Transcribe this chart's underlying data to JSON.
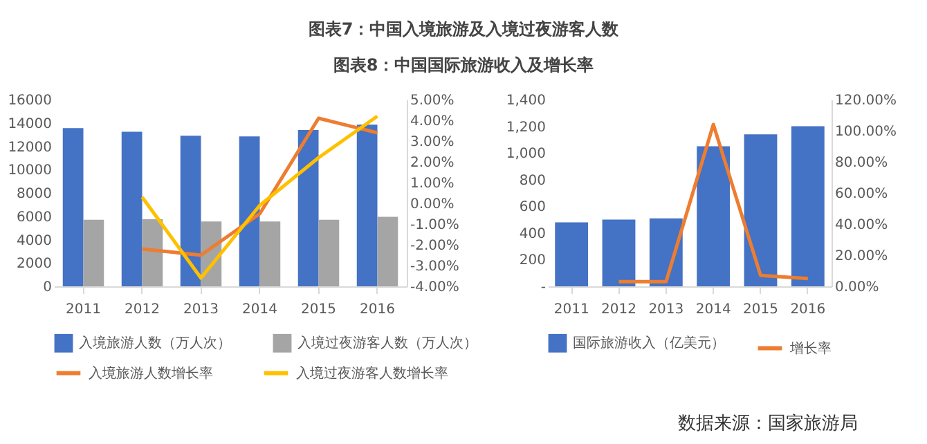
{
  "chart_data": [
    {
      "type": "bar",
      "title": "图表7：中国入境旅游及入境过夜游客人数",
      "categories": [
        "2011",
        "2012",
        "2013",
        "2014",
        "2015",
        "2016"
      ],
      "series": [
        {
          "name": "入境旅游人数（万人次）",
          "color": "#4472c4",
          "values": [
            13550,
            13250,
            12900,
            12850,
            13400,
            13850
          ]
        },
        {
          "name": "入境过夜游客人数（万人次）",
          "color": "#a5a5a5",
          "values": [
            5700,
            5750,
            5550,
            5550,
            5700,
            5950
          ]
        },
        {
          "name": "入境旅游人数增长率",
          "type": "line",
          "axis": "y2",
          "color": "#ed7d31",
          "values": [
            null,
            -2.2,
            -2.5,
            -0.5,
            4.1,
            3.4
          ]
        },
        {
          "name": "入境过夜游客人数增长率",
          "type": "line",
          "axis": "y2",
          "color": "#ffc000",
          "values": [
            null,
            0.3,
            -3.6,
            -0.1,
            2.2,
            4.2
          ]
        }
      ],
      "ylim": [
        0,
        16000
      ],
      "yticks": [
        0,
        2000,
        4000,
        6000,
        8000,
        10000,
        12000,
        14000,
        16000
      ],
      "y2lim": [
        -4,
        5
      ],
      "y2ticks": [
        {
          "value": -4,
          "label": "-4.00%"
        },
        {
          "value": -3,
          "label": "-3.00%"
        },
        {
          "value": -2,
          "label": "-2.00%"
        },
        {
          "value": -1,
          "label": "-1.00%"
        },
        {
          "value": 0,
          "label": "0.00%"
        },
        {
          "value": 1,
          "label": "1.00%"
        },
        {
          "value": 2,
          "label": "2.00%"
        },
        {
          "value": 3,
          "label": "3.00%"
        },
        {
          "value": 4,
          "label": "4.00%"
        },
        {
          "value": 5,
          "label": "5.00%"
        }
      ],
      "legend": "bottom"
    },
    {
      "type": "bar",
      "title": "图表8：中国国际旅游收入及增长率",
      "categories": [
        "2011",
        "2012",
        "2013",
        "2014",
        "2015",
        "2016"
      ],
      "series": [
        {
          "name": "国际旅游收入（亿美元）",
          "color": "#4472c4",
          "values": [
            480,
            500,
            510,
            1050,
            1140,
            1200
          ]
        },
        {
          "name": "增长率",
          "type": "line",
          "axis": "y2",
          "color": "#ed7d31",
          "values": [
            null,
            3,
            3,
            104,
            7,
            5
          ]
        }
      ],
      "ylim": [
        0,
        1400
      ],
      "yticks": [
        {
          "value": 0,
          "label": "-"
        },
        {
          "value": 200,
          "label": "200"
        },
        {
          "value": 400,
          "label": "400"
        },
        {
          "value": 600,
          "label": "600"
        },
        {
          "value": 800,
          "label": "800"
        },
        {
          "value": 1000,
          "label": "1,000"
        },
        {
          "value": 1200,
          "label": "1,200"
        },
        {
          "value": 1400,
          "label": "1,400"
        }
      ],
      "y2lim": [
        0,
        120
      ],
      "y2ticks": [
        {
          "value": 0,
          "label": "0.00%"
        },
        {
          "value": 20,
          "label": "20.00%"
        },
        {
          "value": 40,
          "label": "40.00%"
        },
        {
          "value": 60,
          "label": "60.00%"
        },
        {
          "value": 80,
          "label": "80.00%"
        },
        {
          "value": 100,
          "label": "100.00%"
        },
        {
          "value": 120,
          "label": "120.00%"
        }
      ],
      "legend": "bottom",
      "annotations": [
        "数据来源：国家旅游局"
      ]
    }
  ]
}
